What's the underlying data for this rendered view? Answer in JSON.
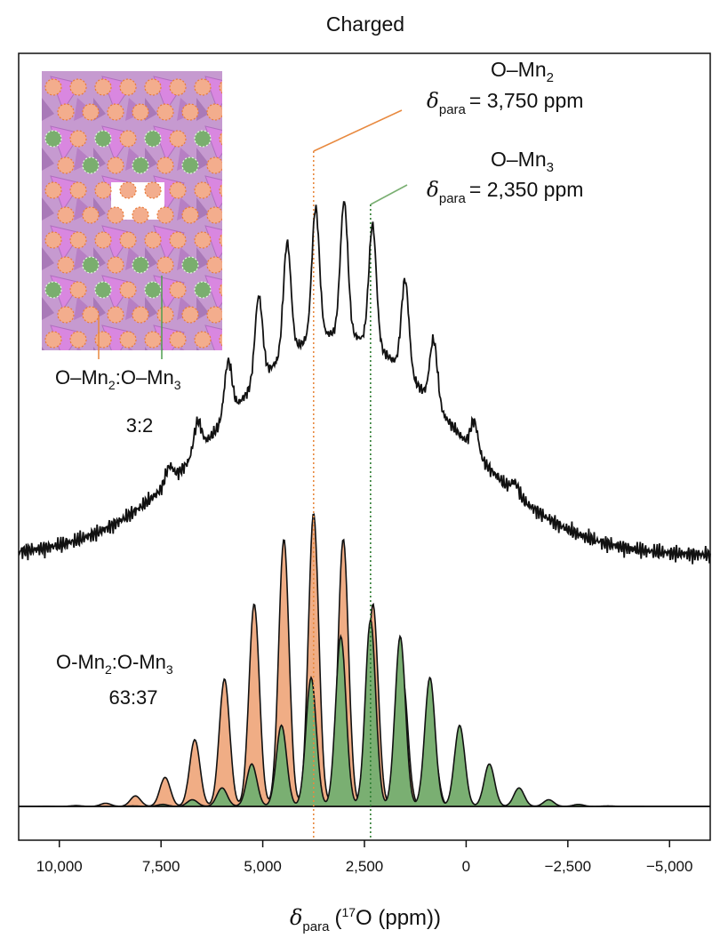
{
  "chart_data": {
    "type": "area",
    "title": "Charged",
    "xlabel": {
      "symbol": "δ",
      "sub": "para",
      "pre": "(",
      "sup": "17",
      "post": "O (ppm))"
    },
    "xlim": [
      11000,
      -6000
    ],
    "xticks": [
      {
        "v": 10000,
        "label": "10,000"
      },
      {
        "v": 7500,
        "label": "7,500"
      },
      {
        "v": 5000,
        "label": "5,000"
      },
      {
        "v": 2500,
        "label": "2,500"
      },
      {
        "v": 0,
        "label": "0"
      },
      {
        "v": -2500,
        "label": "−2,500"
      },
      {
        "v": -5000,
        "label": "−5,000"
      }
    ],
    "sidebands": {
      "spacing": 730,
      "width": 180,
      "envelope_width": 2400
    },
    "series": [
      {
        "name": "O-Mn2",
        "center": 3750,
        "amplitude": 330,
        "color": "#f0ad85"
      },
      {
        "name": "O-Mn3",
        "center": 2350,
        "amplitude": 210,
        "color": "#7aaf72"
      }
    ],
    "experimental_peaks_ppm": [
      7300,
      6600,
      5850,
      5100,
      4400,
      3700,
      3000,
      2300,
      1500,
      800,
      -200,
      -1200
    ],
    "annotations": [
      {
        "label": "O–Mn",
        "sub": "2",
        "value_label": "= 3,750 ppm",
        "delta_sub": "para",
        "x": 3750,
        "color": "#e8893f"
      },
      {
        "label": "O–Mn",
        "sub": "3",
        "value_label": "= 2,350 ppm",
        "delta_sub": "para",
        "x": 2350,
        "color": "#2e7d32"
      }
    ],
    "inset_ratio": {
      "label_a": "O–Mn",
      "sub_a": "2",
      "label_b": ":O–Mn",
      "sub_b": "3",
      "value": "3:2"
    },
    "fit_ratio": {
      "label_a": "O-Mn",
      "sub_a": "2",
      "label_b": ":O-Mn",
      "sub_b": "3",
      "value": "63:37"
    }
  }
}
